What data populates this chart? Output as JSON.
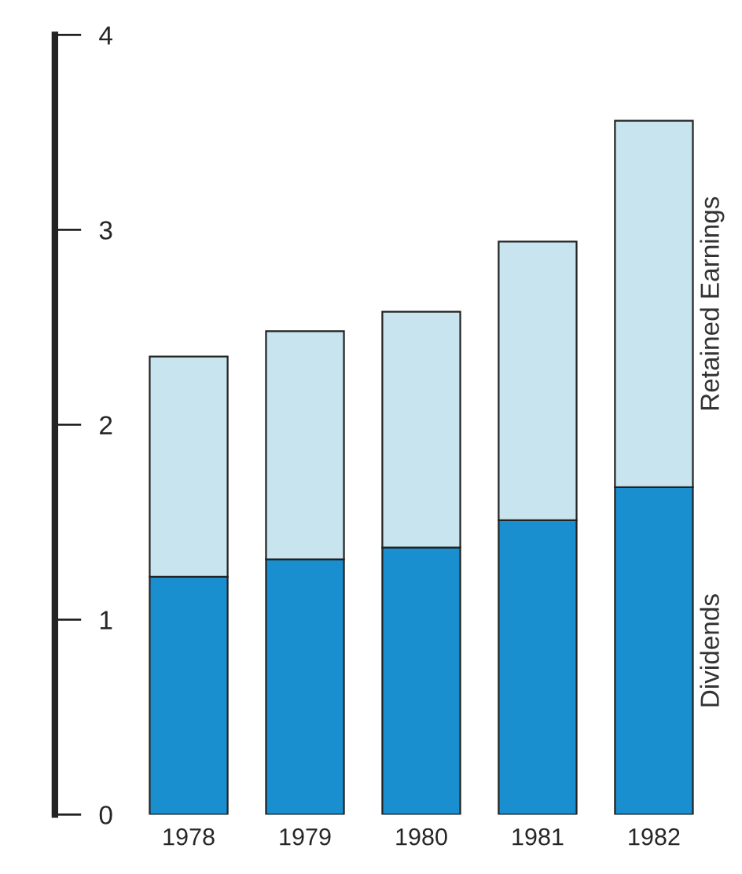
{
  "chart_data": {
    "type": "bar",
    "stacked": true,
    "categories": [
      "1978",
      "1979",
      "1980",
      "1981",
      "1982"
    ],
    "series": [
      {
        "name": "Dividends",
        "color": "#1a8fd0",
        "values": [
          1.22,
          1.31,
          1.37,
          1.51,
          1.68
        ]
      },
      {
        "name": "Retained Earnings",
        "color": "#c8e4ee",
        "values": [
          1.13,
          1.17,
          1.21,
          1.43,
          1.88
        ]
      }
    ],
    "ylim": [
      0,
      4
    ],
    "yticks": [
      0,
      1,
      2,
      3,
      4
    ],
    "legend": false,
    "grid": false
  }
}
